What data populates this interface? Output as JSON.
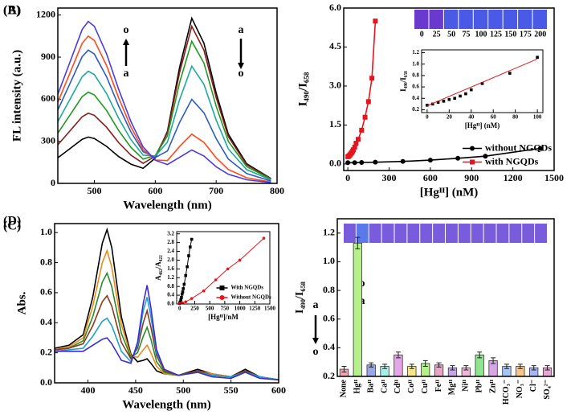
{
  "chart_data": [
    {
      "type": "line",
      "title": "(A)",
      "xlabel": "Wavelength (nm)",
      "ylabel": "FL intensity (a.u.)",
      "xlim": [
        440,
        800
      ],
      "xticks": [
        500,
        600,
        700,
        800
      ],
      "ylim": [
        0,
        1250
      ],
      "yticks": [
        0,
        300,
        600,
        900,
        1200
      ],
      "annotations": [
        "o",
        "a",
        "a",
        "o"
      ],
      "x": [
        440,
        460,
        480,
        490,
        500,
        520,
        540,
        560,
        580,
        600,
        620,
        640,
        660,
        680,
        700,
        720,
        750,
        790
      ],
      "series": [
        {
          "color": "#000000",
          "values": [
            182,
            248,
            314,
            330,
            320,
            264,
            191,
            137,
            108,
            180,
            371,
            829,
            1177,
            998,
            644,
            351,
            140,
            35
          ]
        },
        {
          "color": "#8b1a1a",
          "values": [
            275,
            375,
            475,
            500,
            485,
            400,
            290,
            201,
            143,
            193,
            363,
            792,
            1120,
            949,
            611,
            333,
            133,
            33
          ]
        },
        {
          "color": "#1f9a1f",
          "values": [
            358,
            488,
            618,
            650,
            631,
            520,
            377,
            257,
            173,
            198,
            339,
            720,
            1013,
            857,
            550,
            300,
            120,
            30
          ]
        },
        {
          "color": "#1fa89a",
          "values": [
            440,
            600,
            760,
            800,
            776,
            640,
            464,
            312,
            201,
            194,
            294,
            598,
            836,
            705,
            451,
            246,
            98,
            25
          ]
        },
        {
          "color": "#2a5cc0",
          "values": [
            523,
            713,
            903,
            950,
            922,
            760,
            551,
            367,
            226,
            184,
            231,
            435,
            599,
            503,
            319,
            174,
            70,
            17
          ]
        },
        {
          "color": "#ff4a1c",
          "values": [
            578,
            788,
            998,
            1050,
            1019,
            840,
            609,
            402,
            241,
            166,
            162,
            263,
            351,
            292,
            182,
            99,
            40,
            10
          ]
        },
        {
          "color": "#4a3ae0",
          "values": [
            635,
            866,
            1097,
            1155,
            1120,
            924,
            670,
            441,
            260,
            165,
            134,
            186,
            238,
            195,
            118,
            65,
            26,
            6
          ]
        }
      ]
    },
    {
      "type": "line",
      "title": "(B)",
      "xlabel": "[Hgᴵᴵ] (nM)",
      "ylabel": "I₄₉₀/I₆₅₈",
      "xlim": [
        -30,
        1500
      ],
      "xticks": [
        0,
        300,
        600,
        900,
        1200,
        1500
      ],
      "ylim": [
        -0.25,
        6
      ],
      "yticks": [
        {
          "value": 0,
          "label": "0.0"
        },
        1.5,
        {
          "value": 3,
          "label": "3.0"
        },
        4.5,
        {
          "value": 6,
          "label": "6.0"
        }
      ],
      "legend": "lower right",
      "vial_labels": [
        "0",
        "25",
        "50",
        "75",
        "100",
        "125",
        "150",
        "175",
        "200"
      ],
      "series": [
        {
          "name": "without NGQDs",
          "color": "#000000",
          "marker": "circle",
          "x": [
            0,
            50,
            100,
            200,
            400,
            600,
            800,
            1000,
            1400
          ],
          "values": [
            0.05,
            0.05,
            0.06,
            0.07,
            0.1,
            0.15,
            0.22,
            0.3,
            0.6
          ]
        },
        {
          "name": "with NGQDs",
          "color": "#e8141c",
          "marker": "square",
          "x": [
            0,
            5,
            10,
            15,
            20,
            25,
            30,
            35,
            40,
            50,
            60,
            75,
            100,
            125,
            150,
            175,
            200
          ],
          "values": [
            0.28,
            0.3,
            0.32,
            0.35,
            0.38,
            0.42,
            0.45,
            0.5,
            0.55,
            0.65,
            0.8,
            0.95,
            1.3,
            1.8,
            2.4,
            3.3,
            5.5
          ]
        }
      ],
      "inset": {
        "type": "line",
        "xlabel": "[Hgᴵᴵ] (nM)",
        "ylabel": "I₄₉₀/I₆₅₈",
        "xlim": [
          -5,
          105
        ],
        "xticks": [
          0,
          20,
          40,
          60,
          80,
          100
        ],
        "ylim": [
          0.15,
          1.25
        ],
        "yticks": [
          0.2,
          0.4,
          0.6,
          0.8,
          {
            "value": 1,
            "label": "1.0"
          },
          1.2
        ],
        "series": [
          {
            "color": "#000000",
            "marker": "square",
            "line": false,
            "x": [
              0,
              5,
              10,
              15,
              20,
              25,
              30,
              35,
              40,
              50,
              75,
              100
            ],
            "values": [
              0.28,
              0.3,
              0.33,
              0.35,
              0.38,
              0.4,
              0.44,
              0.48,
              0.55,
              0.66,
              0.84,
              1.12
            ]
          },
          {
            "color": "#e8141c",
            "x": [
              0,
              100
            ],
            "values": [
              0.27,
              1.09
            ]
          }
        ]
      }
    },
    {
      "type": "line",
      "title": "(C)",
      "xlabel": "Wavelength (nm)",
      "ylabel": "Abs.",
      "xlim": [
        365,
        600
      ],
      "xticks": [
        400,
        450,
        500,
        550,
        600
      ],
      "ylim": [
        0,
        1.06
      ],
      "yticks": [
        {
          "value": 0,
          "label": "0.0"
        },
        0.2,
        0.4,
        0.6,
        0.8,
        {
          "value": 1,
          "label": "1.0"
        }
      ],
      "annotations": [
        "a",
        "o",
        "o",
        "a"
      ],
      "x": [
        365,
        380,
        395,
        405,
        415,
        420,
        425,
        435,
        445,
        452,
        458,
        462,
        466,
        472,
        480,
        495,
        515,
        530,
        550,
        565,
        580,
        600
      ],
      "series": [
        {
          "color": "#000000",
          "values": [
            0.23,
            0.25,
            0.32,
            0.57,
            0.93,
            1.02,
            0.9,
            0.44,
            0.19,
            0.14,
            0.15,
            0.16,
            0.13,
            0.08,
            0.06,
            0.05,
            0.09,
            0.06,
            0.04,
            0.09,
            0.04,
            0.02
          ]
        },
        {
          "color": "#e88a1c",
          "values": [
            0.22,
            0.24,
            0.3,
            0.51,
            0.8,
            0.88,
            0.77,
            0.39,
            0.18,
            0.17,
            0.22,
            0.25,
            0.2,
            0.11,
            0.06,
            0.05,
            0.08,
            0.06,
            0.04,
            0.08,
            0.04,
            0.02
          ]
        },
        {
          "color": "#2a8a2a",
          "values": [
            0.22,
            0.23,
            0.28,
            0.44,
            0.67,
            0.73,
            0.64,
            0.33,
            0.17,
            0.2,
            0.31,
            0.37,
            0.29,
            0.14,
            0.07,
            0.05,
            0.08,
            0.05,
            0.04,
            0.08,
            0.04,
            0.02
          ]
        },
        {
          "color": "#8a3a1a",
          "values": [
            0.22,
            0.23,
            0.26,
            0.38,
            0.54,
            0.58,
            0.51,
            0.27,
            0.16,
            0.23,
            0.4,
            0.48,
            0.37,
            0.18,
            0.08,
            0.05,
            0.08,
            0.05,
            0.04,
            0.08,
            0.04,
            0.02
          ]
        },
        {
          "color": "#1f9fd0",
          "values": [
            0.21,
            0.22,
            0.23,
            0.31,
            0.41,
            0.43,
            0.38,
            0.21,
            0.14,
            0.25,
            0.48,
            0.57,
            0.44,
            0.2,
            0.09,
            0.05,
            0.07,
            0.05,
            0.04,
            0.07,
            0.04,
            0.02
          ]
        },
        {
          "color": "#3a2ad0",
          "values": [
            0.21,
            0.21,
            0.21,
            0.25,
            0.29,
            0.3,
            0.26,
            0.15,
            0.13,
            0.27,
            0.53,
            0.65,
            0.5,
            0.22,
            0.09,
            0.05,
            0.07,
            0.04,
            0.03,
            0.07,
            0.03,
            0.02
          ]
        }
      ],
      "inset": {
        "type": "line",
        "xlabel": "[Hgᴵᴵ]/nM",
        "ylabel": "A₄₆₂/A₄₂₂",
        "xlim": [
          -50,
          1500
        ],
        "xticks": [
          0,
          250,
          500,
          750,
          1000,
          1250,
          1500
        ],
        "ylim": [
          0,
          3.3
        ],
        "yticks": [
          {
            "value": 0,
            "label": "0.0"
          },
          0.4,
          0.8,
          1.2,
          1.6,
          {
            "value": 2,
            "label": "2.0"
          },
          2.4,
          2.8,
          3.2
        ],
        "legend": "lower right",
        "series": [
          {
            "name": "With NGQDs",
            "color": "#000000",
            "marker": "square",
            "x": [
              0,
              10,
              20,
              30,
              40,
              50,
              60,
              75,
              100,
              125,
              150,
              175,
              200
            ],
            "values": [
              0.05,
              0.1,
              0.2,
              0.3,
              0.45,
              0.55,
              0.7,
              0.9,
              1.3,
              1.7,
              2.2,
              2.6,
              2.95
            ]
          },
          {
            "name": "Without NGQDs",
            "color": "#e8141c",
            "marker": "circle",
            "x": [
              0,
              50,
              100,
              200,
              400,
              600,
              800,
              1000,
              1400
            ],
            "values": [
              0.02,
              0.05,
              0.1,
              0.25,
              0.6,
              1.1,
              1.6,
              2.0,
              3.0
            ]
          }
        ]
      }
    },
    {
      "type": "bar",
      "title": "(D)",
      "ylabel": "I₄₉₀/I₆₅₈",
      "ylim": [
        0.2,
        1.3
      ],
      "yticks": [
        0.2,
        0.4,
        0.6,
        0.8,
        {
          "value": 1,
          "label": "1.0"
        },
        1.2
      ],
      "categories": [
        "None",
        "Hgᴵᴵ",
        "Baᴵᴵ",
        "Caᴵᴵ",
        "Cdᴵᴵ",
        "Coᴵᴵ",
        "Cuᴵᴵ",
        "Feᴵᴵ",
        "Mgᴵᴵ",
        "Niᴵᴵ",
        "Pbᴵᴵ",
        "Znᴵᴵ",
        "HCO₃⁻",
        "NO₃⁻",
        "Cl⁻",
        "SO₄²⁻"
      ],
      "values": [
        0.25,
        1.13,
        0.28,
        0.27,
        0.35,
        0.27,
        0.29,
        0.28,
        0.26,
        0.26,
        0.35,
        0.31,
        0.27,
        0.27,
        0.26,
        0.26
      ],
      "errors": [
        0.02,
        0.04,
        0.015,
        0.015,
        0.02,
        0.015,
        0.02,
        0.015,
        0.015,
        0.015,
        0.02,
        0.02,
        0.015,
        0.015,
        0.015,
        0.015
      ],
      "colors": [
        "#f4a6b6",
        "#b6f08a",
        "#9aa6e6",
        "#a6f0e6",
        "#e6a6e6",
        "#f6e68a",
        "#b6f08a",
        "#e6a6c6",
        "#c6a6e6",
        "#f0b6d6",
        "#8ee68e",
        "#d6a6e6",
        "#a6c6f6",
        "#f6c68a",
        "#a6b6f6",
        "#e6a6d6"
      ]
    }
  ]
}
